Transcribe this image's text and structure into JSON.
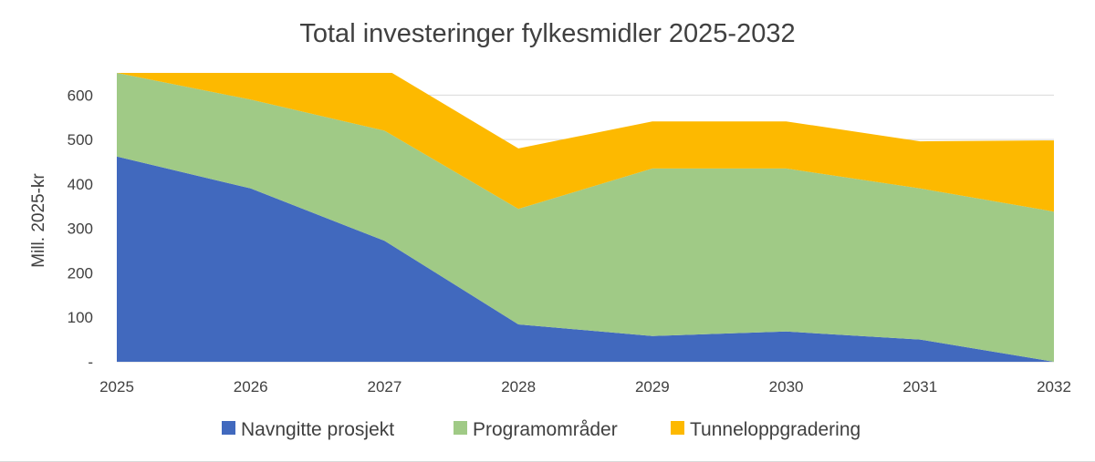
{
  "chart_data": {
    "type": "area",
    "stacked": true,
    "title": "Total investeringer fylkesmidler 2025-2032",
    "ylabel": "Mill. 2025-kr",
    "xlabel": "",
    "categories": [
      "2025",
      "2026",
      "2027",
      "2028",
      "2029",
      "2030",
      "2031",
      "2032"
    ],
    "ylim": [
      0,
      650
    ],
    "yticks": [
      {
        "value": 0,
        "label": "-"
      },
      {
        "value": 100,
        "label": "100"
      },
      {
        "value": 200,
        "label": "200"
      },
      {
        "value": 300,
        "label": "300"
      },
      {
        "value": 400,
        "label": "400"
      },
      {
        "value": 500,
        "label": "500"
      },
      {
        "value": 600,
        "label": "600"
      }
    ],
    "grid": true,
    "legend_position": "bottom",
    "series": [
      {
        "name": "Navngitte prosjekt",
        "color": "#4169be",
        "values": [
          462,
          390,
          272,
          84,
          58,
          68,
          50,
          0
        ]
      },
      {
        "name": "Programområder",
        "color": "#a0ca86",
        "values": [
          188,
          200,
          248,
          260,
          377,
          367,
          340,
          338
        ]
      },
      {
        "name": "Tunneloppgradering",
        "color": "#fdb900",
        "values": [
          10,
          70,
          140,
          136,
          106,
          106,
          106,
          160
        ]
      }
    ]
  }
}
